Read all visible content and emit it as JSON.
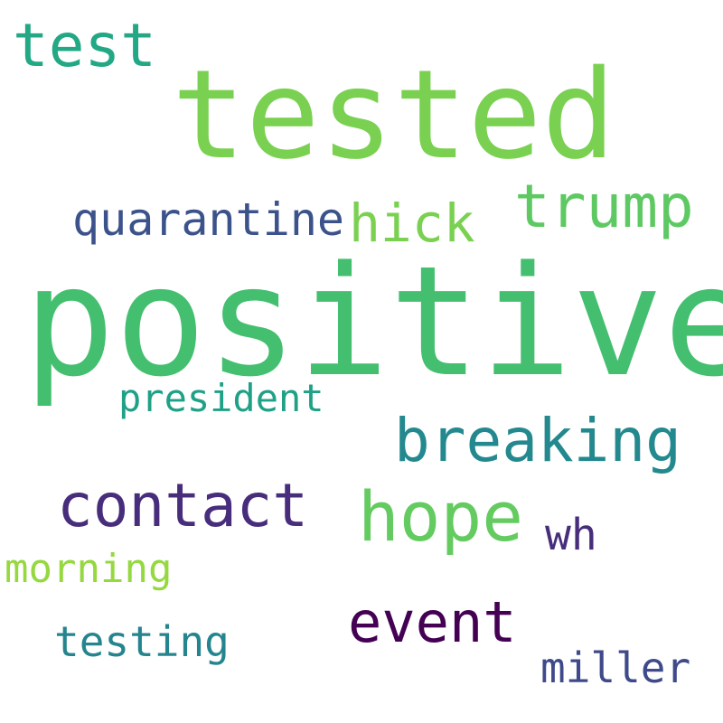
{
  "words": [
    {
      "id": "positive",
      "text": "positive",
      "color": "#44bf70"
    },
    {
      "id": "tested",
      "text": "tested",
      "color": "#7ad151"
    },
    {
      "id": "test",
      "text": "test",
      "color": "#22a884"
    },
    {
      "id": "trump",
      "text": "trump",
      "color": "#5ec962"
    },
    {
      "id": "hick",
      "text": "hick",
      "color": "#7ad151"
    },
    {
      "id": "quarantine",
      "text": "quarantine",
      "color": "#3b528b"
    },
    {
      "id": "president",
      "text": "president",
      "color": "#1fa187"
    },
    {
      "id": "breaking",
      "text": "breaking",
      "color": "#23898e"
    },
    {
      "id": "contact",
      "text": "contact",
      "color": "#472d7b"
    },
    {
      "id": "hope",
      "text": "hope",
      "color": "#63cb5f"
    },
    {
      "id": "wh",
      "text": "wh",
      "color": "#472d7b"
    },
    {
      "id": "morning",
      "text": "morning",
      "color": "#95d840"
    },
    {
      "id": "event",
      "text": "event",
      "color": "#440154"
    },
    {
      "id": "testing",
      "text": "testing",
      "color": "#25858e"
    },
    {
      "id": "miller",
      "text": "miller",
      "color": "#3e4a89"
    }
  ]
}
